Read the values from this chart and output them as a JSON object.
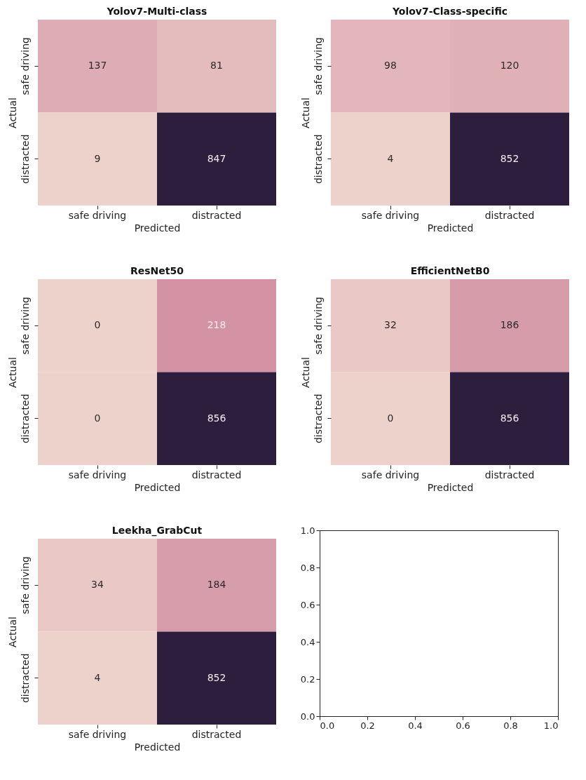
{
  "chart_data": [
    {
      "type": "heatmap",
      "title": "Yolov7-Multi-class",
      "xlabel": "Predicted",
      "ylabel": "Actual",
      "categories": [
        "safe driving",
        "distracted"
      ],
      "y_categories": [
        "safe driving",
        "distracted"
      ],
      "cells": [
        [
          137,
          81
        ],
        [
          9,
          847
        ]
      ],
      "data_labels": true
    },
    {
      "type": "heatmap",
      "title": "Yolov7-Class-specific",
      "xlabel": "Predicted",
      "ylabel": "Actual",
      "categories": [
        "safe driving",
        "distracted"
      ],
      "y_categories": [
        "safe driving",
        "distracted"
      ],
      "cells": [
        [
          98,
          120
        ],
        [
          4,
          852
        ]
      ],
      "data_labels": true
    },
    {
      "type": "heatmap",
      "title": "ResNet50",
      "xlabel": "Predicted",
      "ylabel": "Actual",
      "categories": [
        "safe driving",
        "distracted"
      ],
      "y_categories": [
        "safe driving",
        "distracted"
      ],
      "cells": [
        [
          0,
          218
        ],
        [
          0,
          856
        ]
      ],
      "data_labels": true
    },
    {
      "type": "heatmap",
      "title": "EfficientNetB0",
      "xlabel": "Predicted",
      "ylabel": "Actual",
      "categories": [
        "safe driving",
        "distracted"
      ],
      "y_categories": [
        "safe driving",
        "distracted"
      ],
      "cells": [
        [
          32,
          186
        ],
        [
          0,
          856
        ]
      ],
      "data_labels": true
    },
    {
      "type": "heatmap",
      "title": "Leekha_GrabCut",
      "xlabel": "Predicted",
      "ylabel": "Actual",
      "categories": [
        "safe driving",
        "distracted"
      ],
      "y_categories": [
        "safe driving",
        "distracted"
      ],
      "cells": [
        [
          34,
          184
        ],
        [
          4,
          852
        ]
      ],
      "data_labels": true
    },
    {
      "type": "scatter",
      "xlim": [
        0,
        1
      ],
      "ylim": [
        0,
        1
      ],
      "xticks": [
        {
          "value": 0,
          "label": "0.0"
        },
        {
          "value": 0.2,
          "label": "0.2"
        },
        {
          "value": 0.4,
          "label": "0.4"
        },
        {
          "value": 0.6,
          "label": "0.6"
        },
        {
          "value": 0.8,
          "label": "0.8"
        },
        {
          "value": 1,
          "label": "1.0"
        }
      ],
      "yticks": [
        {
          "value": 0,
          "label": "0.0"
        },
        {
          "value": 0.2,
          "label": "0.2"
        },
        {
          "value": 0.4,
          "label": "0.4"
        },
        {
          "value": 0.6,
          "label": "0.6"
        },
        {
          "value": 0.8,
          "label": "0.8"
        },
        {
          "value": 1,
          "label": "1.0"
        }
      ]
    }
  ]
}
